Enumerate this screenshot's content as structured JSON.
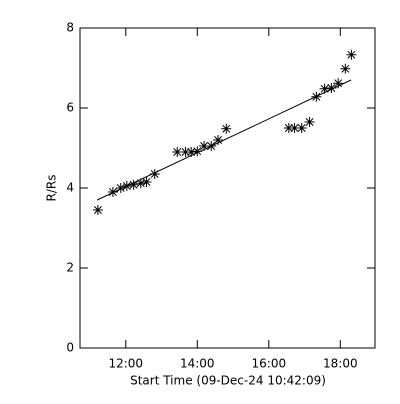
{
  "chart_data": {
    "type": "scatter",
    "x_label": "Start Time (09-Dec-24 10:42:09)",
    "y_label": "R/Rs",
    "xlim": [
      10.72,
      18.97
    ],
    "ylim": [
      0,
      8
    ],
    "xticks": [
      {
        "value": 12,
        "label": "12:00"
      },
      {
        "value": 14,
        "label": "14:00"
      },
      {
        "value": 16,
        "label": "16:00"
      },
      {
        "value": 18,
        "label": "18:00"
      }
    ],
    "yticks": [
      0,
      2,
      4,
      6,
      8
    ],
    "color": "#000000",
    "series": [
      {
        "type": "scatter",
        "x": [
          11.22,
          11.64,
          11.86,
          12.03,
          12.22,
          12.42,
          12.58,
          12.81,
          13.44,
          13.67,
          13.83,
          14.0,
          14.19,
          14.39,
          14.58,
          14.81,
          16.56,
          16.72,
          16.92,
          17.14,
          17.33,
          17.56,
          17.75,
          17.94,
          18.14,
          18.31
        ],
        "values": [
          3.45,
          3.9,
          4.0,
          4.05,
          4.08,
          4.12,
          4.15,
          4.35,
          4.9,
          4.9,
          4.9,
          4.92,
          5.05,
          5.05,
          5.2,
          5.48,
          5.5,
          5.5,
          5.5,
          5.65,
          6.28,
          6.48,
          6.5,
          6.62,
          6.98,
          7.33
        ]
      },
      {
        "type": "line",
        "x": [
          11.2,
          18.3
        ],
        "values": [
          3.7,
          6.7
        ]
      }
    ]
  }
}
